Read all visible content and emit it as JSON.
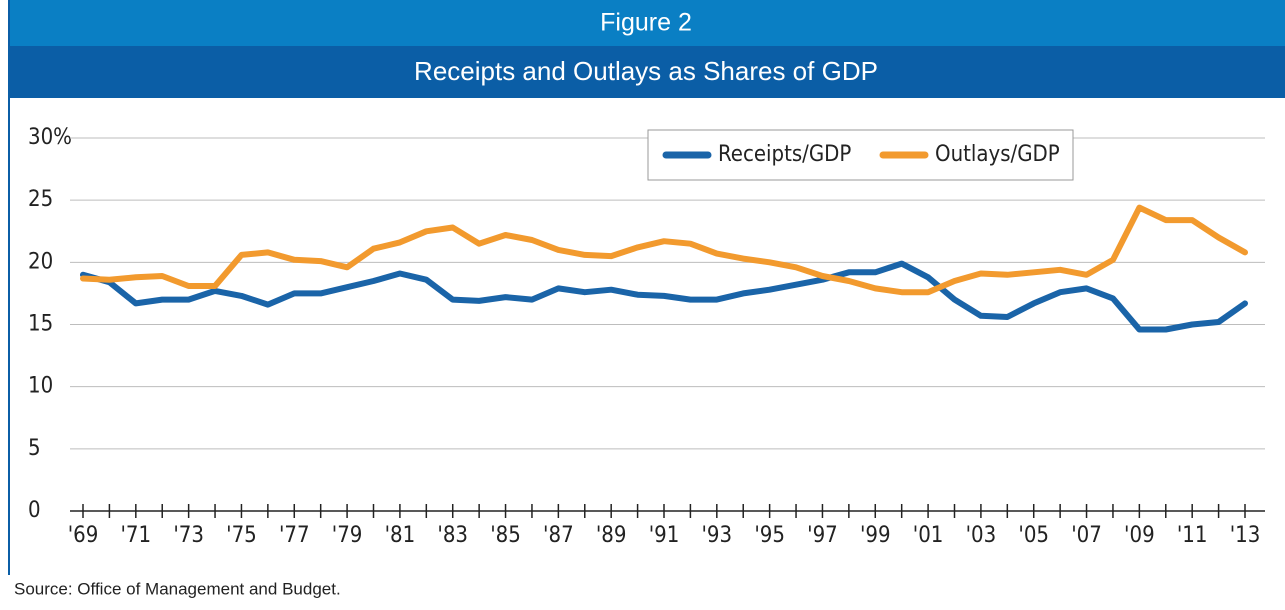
{
  "header": {
    "figure": "Figure 2"
  },
  "chart_data": {
    "type": "line",
    "title": "Receipts and Outlays as Shares of GDP",
    "source": "Source: Office of Management and Budget.",
    "categories": [
      "'69",
      null,
      "'71",
      null,
      "'73",
      null,
      "'75",
      null,
      "'77",
      null,
      "'79",
      null,
      "'81",
      null,
      "'83",
      null,
      "'85",
      null,
      "'87",
      null,
      "'89",
      null,
      "'91",
      null,
      "'93",
      null,
      "'95",
      null,
      "'97",
      null,
      "'99",
      null,
      "'01",
      null,
      "'03",
      null,
      "'05",
      null,
      "'07",
      null,
      "'09",
      null,
      "'11",
      null,
      "'13"
    ],
    "series": [
      {
        "name": "Receipts/GDP",
        "color": "#1a64a8",
        "values": [
          19.0,
          18.4,
          16.7,
          17.0,
          17.0,
          17.7,
          17.3,
          16.6,
          17.5,
          17.5,
          18.0,
          18.5,
          19.1,
          18.6,
          17.0,
          16.9,
          17.2,
          17.0,
          17.9,
          17.6,
          17.8,
          17.4,
          17.3,
          17.0,
          17.0,
          17.5,
          17.8,
          18.2,
          18.6,
          19.2,
          19.2,
          19.9,
          18.8,
          17.0,
          15.7,
          15.6,
          16.7,
          17.6,
          17.9,
          17.1,
          14.6,
          14.6,
          15.0,
          15.2,
          16.7
        ]
      },
      {
        "name": "Outlays/GDP",
        "color": "#f29a2e",
        "values": [
          18.7,
          18.6,
          18.8,
          18.9,
          18.1,
          18.1,
          20.6,
          20.8,
          20.2,
          20.1,
          19.6,
          21.1,
          21.6,
          22.5,
          22.8,
          21.5,
          22.2,
          21.8,
          21.0,
          20.6,
          20.5,
          21.2,
          21.7,
          21.5,
          20.7,
          20.3,
          20.0,
          19.6,
          18.9,
          18.5,
          17.9,
          17.6,
          17.6,
          18.5,
          19.1,
          19.0,
          19.2,
          19.4,
          19.0,
          20.2,
          24.4,
          23.4,
          23.4,
          22.0,
          20.8
        ]
      }
    ],
    "ylim": [
      0,
      30
    ],
    "yticks": [
      0,
      5,
      10,
      15,
      20,
      25,
      {
        "value": 30,
        "label": "30%"
      }
    ],
    "grid": true,
    "legend": "top-right"
  }
}
